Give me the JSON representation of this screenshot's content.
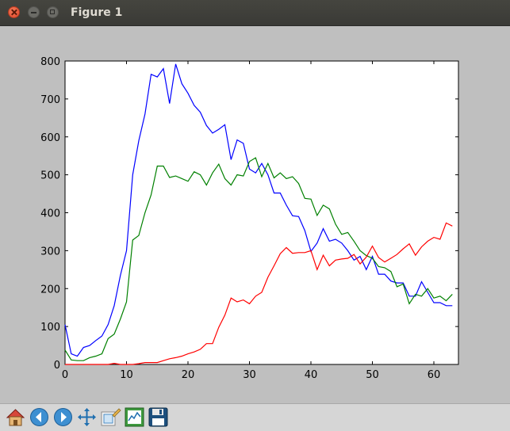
{
  "window": {
    "title": "Figure 1"
  },
  "toolbar": {
    "buttons": [
      {
        "name": "home-button",
        "icon": "home-icon"
      },
      {
        "name": "back-button",
        "icon": "back-arrow-icon"
      },
      {
        "name": "forward-button",
        "icon": "forward-arrow-icon"
      },
      {
        "name": "pan-button",
        "icon": "move-arrows-icon"
      },
      {
        "name": "zoom-button",
        "icon": "zoom-rect-icon"
      },
      {
        "name": "configure-subplots-button",
        "icon": "subplots-icon"
      },
      {
        "name": "save-button",
        "icon": "floppy-disk-icon"
      }
    ]
  },
  "chart_data": {
    "type": "line",
    "title": "",
    "xlabel": "",
    "ylabel": "",
    "xlim": [
      0,
      64
    ],
    "ylim": [
      0,
      800
    ],
    "xticks": [
      "0",
      "10",
      "20",
      "30",
      "40",
      "50",
      "60"
    ],
    "yticks": [
      "0",
      "100",
      "200",
      "300",
      "400",
      "500",
      "600",
      "700",
      "800"
    ],
    "grid": false,
    "series": [
      {
        "color": "#0000ff",
        "values": [
          105,
          28,
          22,
          45,
          50,
          63,
          75,
          105,
          155,
          235,
          300,
          500,
          590,
          660,
          765,
          758,
          780,
          688,
          792,
          740,
          715,
          683,
          665,
          630,
          610,
          620,
          632,
          540,
          592,
          583,
          515,
          505,
          530,
          500,
          452,
          452,
          420,
          392,
          390,
          353,
          298,
          320,
          358,
          325,
          330,
          320,
          300,
          275,
          285,
          250,
          285,
          238,
          238,
          220,
          215,
          215,
          180,
          180,
          218,
          190,
          163,
          163,
          155,
          155
        ]
      },
      {
        "color": "#008000",
        "values": [
          38,
          12,
          10,
          10,
          18,
          22,
          28,
          68,
          80,
          120,
          165,
          328,
          340,
          400,
          447,
          523,
          523,
          493,
          497,
          490,
          483,
          508,
          500,
          473,
          505,
          528,
          490,
          473,
          500,
          497,
          535,
          545,
          495,
          530,
          492,
          505,
          490,
          495,
          477,
          438,
          436,
          393,
          420,
          410,
          370,
          343,
          348,
          325,
          300,
          287,
          280,
          258,
          255,
          245,
          205,
          212,
          160,
          185,
          180,
          200,
          175,
          180,
          168,
          185
        ]
      },
      {
        "color": "#ff0000",
        "values": [
          0,
          0,
          0,
          0,
          0,
          0,
          0,
          0,
          3,
          0,
          0,
          0,
          2,
          5,
          5,
          5,
          10,
          15,
          18,
          22,
          28,
          33,
          40,
          55,
          55,
          98,
          130,
          175,
          165,
          170,
          160,
          180,
          190,
          230,
          260,
          292,
          308,
          293,
          295,
          295,
          300,
          250,
          288,
          260,
          275,
          278,
          280,
          290,
          265,
          283,
          312,
          282,
          270,
          280,
          290,
          305,
          318,
          288,
          310,
          325,
          335,
          330,
          373,
          365
        ]
      }
    ]
  }
}
